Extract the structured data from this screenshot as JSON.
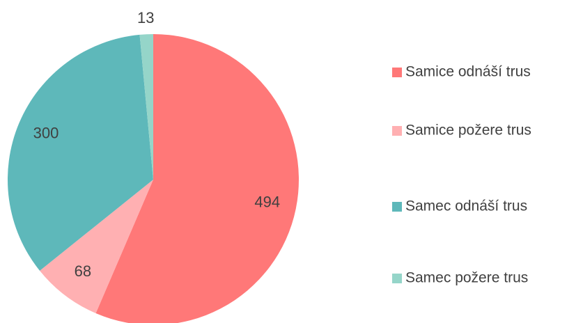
{
  "chart_data": {
    "type": "pie",
    "categories": [
      "Samice odnáší trus",
      "Samice požere trus",
      "Samec odnáší trus",
      "Samec požere trus"
    ],
    "values": [
      494,
      68,
      300,
      13
    ],
    "colors": [
      "#ff7878",
      "#ffb0b2",
      "#5eb8ba",
      "#95d5c9"
    ],
    "legend": "right"
  }
}
